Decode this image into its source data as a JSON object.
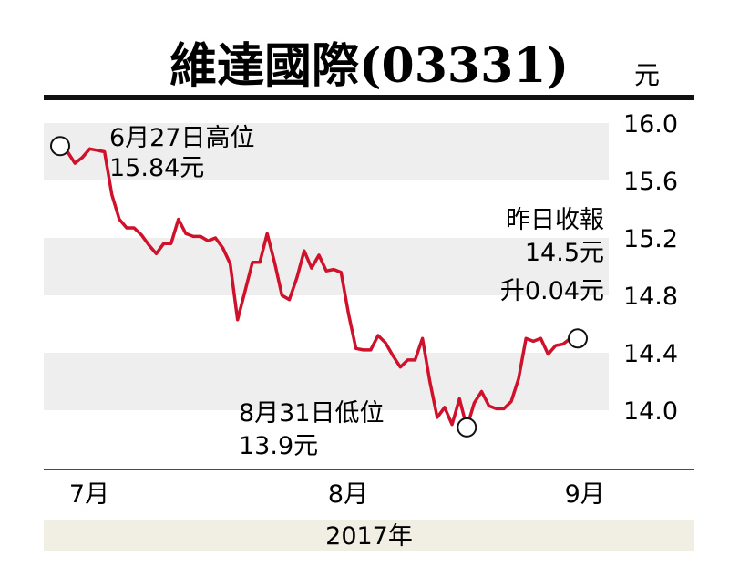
{
  "chart_data": {
    "type": "line",
    "title": "維達國際(03331)",
    "unit": "元",
    "yticks": [
      16.0,
      15.6,
      15.2,
      14.8,
      14.4,
      14.0
    ],
    "ytick_labels": [
      "16.0",
      "15.6",
      "15.2",
      "14.8",
      "14.4",
      "14.0"
    ],
    "ylim": [
      13.6,
      16.0
    ],
    "grid": "alternating bands",
    "months": [
      {
        "label": "7月",
        "day": 0
      },
      {
        "label": "8月",
        "day": 35
      },
      {
        "label": "9月",
        "day": 67
      }
    ],
    "xlabel": "2017年",
    "series": [
      {
        "color": "#d0112b",
        "points": [
          [
            0,
            15.84
          ],
          [
            1,
            15.8
          ],
          [
            2,
            15.72
          ],
          [
            3,
            15.76
          ],
          [
            4,
            15.82
          ],
          [
            6,
            15.8
          ],
          [
            7,
            15.5
          ],
          [
            8,
            15.33
          ],
          [
            9,
            15.27
          ],
          [
            10,
            15.27
          ],
          [
            11,
            15.22
          ],
          [
            12,
            15.15
          ],
          [
            13,
            15.09
          ],
          [
            14,
            15.16
          ],
          [
            15,
            15.16
          ],
          [
            16,
            15.33
          ],
          [
            17,
            15.23
          ],
          [
            18,
            15.21
          ],
          [
            19,
            15.21
          ],
          [
            20,
            15.18
          ],
          [
            21,
            15.2
          ],
          [
            22,
            15.13
          ],
          [
            23,
            15.02
          ],
          [
            24,
            14.63
          ],
          [
            25,
            14.83
          ],
          [
            26,
            15.03
          ],
          [
            27,
            15.03
          ],
          [
            28,
            15.23
          ],
          [
            29,
            15.03
          ],
          [
            30,
            14.8
          ],
          [
            31,
            14.77
          ],
          [
            32,
            14.92
          ],
          [
            33,
            15.11
          ],
          [
            34,
            14.99
          ],
          [
            35,
            15.08
          ],
          [
            36,
            14.97
          ],
          [
            37,
            14.98
          ],
          [
            38,
            14.96
          ],
          [
            39,
            14.67
          ],
          [
            40,
            14.43
          ],
          [
            41,
            14.42
          ],
          [
            42,
            14.42
          ],
          [
            43,
            14.52
          ],
          [
            44,
            14.47
          ],
          [
            45,
            14.38
          ],
          [
            46,
            14.3
          ],
          [
            47,
            14.35
          ],
          [
            48,
            14.35
          ],
          [
            49,
            14.5
          ],
          [
            50,
            14.2
          ],
          [
            51,
            13.95
          ],
          [
            52,
            14.02
          ],
          [
            53,
            13.9
          ],
          [
            54,
            14.08
          ],
          [
            55,
            13.88
          ],
          [
            56,
            14.05
          ],
          [
            57,
            14.13
          ],
          [
            58,
            14.03
          ],
          [
            59,
            14.01
          ],
          [
            60,
            14.01
          ],
          [
            61,
            14.06
          ],
          [
            62,
            14.22
          ],
          [
            63,
            14.5
          ],
          [
            64,
            14.48
          ],
          [
            65,
            14.5
          ],
          [
            66,
            14.39
          ],
          [
            67,
            14.45
          ],
          [
            68,
            14.46
          ],
          [
            69,
            14.5
          ],
          [
            70,
            14.5
          ]
        ]
      }
    ],
    "annotations": [
      {
        "line1": "6月27日高位",
        "line2": "15.84元"
      },
      {
        "line1": "8月31日低位",
        "line2": "13.9元"
      },
      {
        "line1": "昨日收報",
        "line2": "14.5元",
        "line3": "升0.04元"
      }
    ]
  }
}
